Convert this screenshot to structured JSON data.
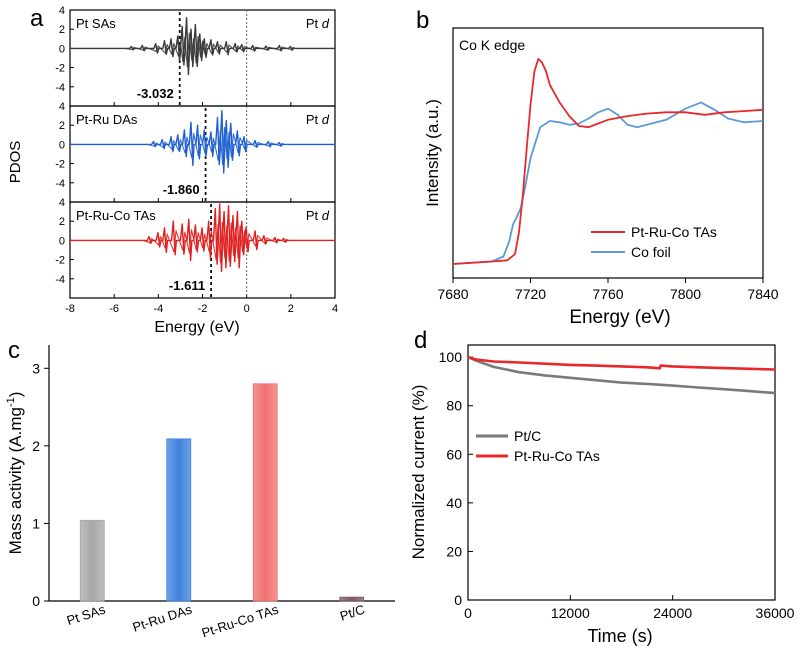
{
  "panel_letters": [
    "a",
    "b",
    "c",
    "d"
  ],
  "chart_data": [
    {
      "panel": "a",
      "type": "line",
      "xlabel": "Energy (eV)",
      "ylabel": "PDOS",
      "xlim": [
        -8,
        4
      ],
      "xticks": [
        "-8",
        "-6",
        "-4",
        "-2",
        "0",
        "2",
        "4"
      ],
      "subplots": [
        {
          "name": "Pt SAs",
          "orbital": "Pt d",
          "color": "#3a3a3a",
          "ylim": [
            -6,
            4
          ],
          "yticks": [
            "4",
            "2",
            "0",
            "-2",
            "-4"
          ],
          "d_band_center": -3.032,
          "d_band_label": "-3.032",
          "fermi": 0,
          "spikes": [
            [
              -5.3,
              0.2
            ],
            [
              -4.8,
              0.3
            ],
            [
              -4.2,
              0.5
            ],
            [
              -3.8,
              0.8
            ],
            [
              -3.5,
              1.0
            ],
            [
              -3.2,
              1.3
            ],
            [
              -3.0,
              2.3
            ],
            [
              -2.8,
              3.2
            ],
            [
              -2.6,
              2.0
            ],
            [
              -2.4,
              2.5
            ],
            [
              -2.2,
              1.5
            ],
            [
              -2.0,
              1.0
            ],
            [
              -1.7,
              0.9
            ],
            [
              -1.4,
              0.7
            ],
            [
              -1.0,
              0.7
            ],
            [
              -0.6,
              0.5
            ],
            [
              -0.3,
              0.4
            ],
            [
              0.2,
              0.3
            ],
            [
              0.8,
              0.25
            ],
            [
              1.4,
              0.3
            ],
            [
              1.9,
              0.2
            ]
          ]
        },
        {
          "name": "Pt-Ru DAs",
          "orbital": "Pt d",
          "color": "#1f5fd1",
          "ylim": [
            -6,
            4
          ],
          "yticks": [
            "4",
            "2",
            "0",
            "-2",
            "-4"
          ],
          "d_band_center": -1.86,
          "d_band_label": "-1.860",
          "fermi": 0,
          "spikes": [
            [
              -4.3,
              0.3
            ],
            [
              -3.9,
              0.5
            ],
            [
              -3.5,
              0.8
            ],
            [
              -3.2,
              1.0
            ],
            [
              -2.9,
              1.5
            ],
            [
              -2.6,
              2.3
            ],
            [
              -2.3,
              2.0
            ],
            [
              -2.0,
              1.5
            ],
            [
              -1.7,
              1.3
            ],
            [
              -1.4,
              2.8
            ],
            [
              -1.2,
              3.5
            ],
            [
              -1.0,
              2.5
            ],
            [
              -0.8,
              2.2
            ],
            [
              -0.5,
              1.4
            ],
            [
              -0.2,
              0.8
            ],
            [
              0.3,
              0.4
            ],
            [
              0.9,
              0.3
            ],
            [
              1.4,
              0.2
            ]
          ]
        },
        {
          "name": "Pt-Ru-Co TAs",
          "orbital": "Pt d",
          "color": "#e02020",
          "ylim": [
            -6,
            4
          ],
          "yticks": [
            "4",
            "2",
            "0",
            "-2",
            "-4"
          ],
          "d_band_center": -1.611,
          "d_band_label": "-1.611",
          "fermi": 0,
          "spikes": [
            [
              -4.5,
              0.4
            ],
            [
              -4.1,
              0.8
            ],
            [
              -3.8,
              1.3
            ],
            [
              -3.4,
              2.0
            ],
            [
              -3.0,
              1.7
            ],
            [
              -2.7,
              2.2
            ],
            [
              -2.4,
              1.6
            ],
            [
              -2.1,
              1.3
            ],
            [
              -1.8,
              2.0
            ],
            [
              -1.5,
              3.3
            ],
            [
              -1.3,
              3.8
            ],
            [
              -1.1,
              3.0
            ],
            [
              -0.9,
              3.6
            ],
            [
              -0.7,
              2.6
            ],
            [
              -0.5,
              3.0
            ],
            [
              -0.3,
              2.0
            ],
            [
              -0.1,
              1.4
            ],
            [
              0.3,
              1.0
            ],
            [
              0.7,
              0.5
            ],
            [
              1.2,
              0.3
            ],
            [
              1.6,
              0.2
            ]
          ]
        }
      ]
    },
    {
      "panel": "b",
      "type": "line",
      "annotation": "Co K edge",
      "xlabel": "Energy (eV)",
      "ylabel": "Intensity (a.u.)",
      "xlim": [
        7680,
        7840
      ],
      "xticks": [
        "7680",
        "7720",
        "7760",
        "7800",
        "7840"
      ],
      "ylim": [
        0,
        1.85
      ],
      "legend_position": "bottom-right",
      "series": [
        {
          "name": "Pt-Ru-Co TAs",
          "color": "#e8282b",
          "x": [
            7680,
            7700,
            7708,
            7712,
            7714,
            7716,
            7718,
            7720,
            7722,
            7724,
            7726,
            7728,
            7730,
            7735,
            7740,
            7745,
            7750,
            7755,
            7760,
            7770,
            7780,
            7790,
            7800,
            7810,
            7820,
            7830,
            7840
          ],
          "y": [
            0.0,
            0.02,
            0.03,
            0.08,
            0.25,
            0.55,
            0.92,
            1.28,
            1.55,
            1.65,
            1.62,
            1.55,
            1.44,
            1.3,
            1.19,
            1.11,
            1.1,
            1.13,
            1.16,
            1.19,
            1.21,
            1.22,
            1.22,
            1.2,
            1.22,
            1.23,
            1.24
          ]
        },
        {
          "name": "Co foil",
          "color": "#5b9bd5",
          "x": [
            7680,
            7700,
            7706,
            7709,
            7711,
            7713,
            7715,
            7717,
            7720,
            7725,
            7730,
            7735,
            7740,
            7745,
            7750,
            7755,
            7760,
            7765,
            7770,
            7775,
            7780,
            7790,
            7800,
            7808,
            7815,
            7822,
            7830,
            7840
          ],
          "y": [
            0.0,
            0.02,
            0.06,
            0.18,
            0.32,
            0.38,
            0.45,
            0.6,
            0.85,
            1.1,
            1.15,
            1.14,
            1.12,
            1.13,
            1.17,
            1.22,
            1.25,
            1.2,
            1.12,
            1.1,
            1.12,
            1.16,
            1.25,
            1.3,
            1.24,
            1.17,
            1.14,
            1.15
          ]
        }
      ]
    },
    {
      "panel": "c",
      "type": "bar",
      "ylabel": "Mass activity (A.mg-1)",
      "ylabel_main": "Mass activity (A.mg",
      "ylabel_sup": "-1",
      "ylabel_close": ")",
      "categories": [
        "Pt SAs",
        "Pt-Ru DAs",
        "Pt-Ru-Co TAs",
        "Pt/C"
      ],
      "values": [
        1.04,
        2.09,
        2.8,
        0.05
      ],
      "colors": [
        "#a8a8a8",
        "#3f82e0",
        "#f07070",
        "#7a5a66"
      ],
      "ylim": [
        0,
        3.3
      ],
      "yticks": [
        "0",
        "1",
        "2",
        "3"
      ]
    },
    {
      "panel": "d",
      "type": "line",
      "xlabel": "Time (s)",
      "ylabel": "Normalized current (%)",
      "xlim": [
        0,
        36000
      ],
      "ylim": [
        0,
        105
      ],
      "xticks": [
        "0",
        "12000",
        "24000",
        "36000"
      ],
      "yticks": [
        "0",
        "20",
        "40",
        "60",
        "80",
        "100"
      ],
      "legend_position": "middle-left",
      "series": [
        {
          "name": "Pt/C",
          "color": "#7a7a7a",
          "x": [
            0,
            1000,
            3000,
            6000,
            9000,
            12000,
            15000,
            18000,
            21000,
            24000,
            27000,
            30000,
            33000,
            36000
          ],
          "y": [
            100,
            98.5,
            96,
            93.8,
            92.5,
            91.5,
            90.5,
            89.5,
            89,
            88.3,
            87.5,
            86.8,
            86,
            85.2
          ]
        },
        {
          "name": "Pt-Ru-Co TAs",
          "color": "#e8282b",
          "x": [
            0,
            1000,
            3000,
            6000,
            9000,
            12000,
            15000,
            18000,
            21000,
            22500,
            22600,
            24000,
            27000,
            30000,
            33000,
            36000
          ],
          "y": [
            100,
            99,
            98.2,
            97.8,
            97.3,
            96.8,
            96.5,
            96.2,
            95.8,
            95.4,
            96.5,
            96.2,
            95.8,
            95.5,
            95.2,
            94.9
          ]
        }
      ]
    }
  ]
}
